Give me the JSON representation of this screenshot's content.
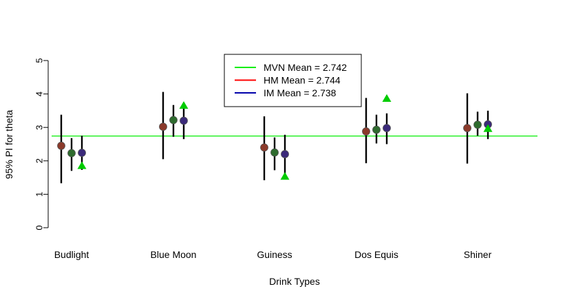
{
  "chart_data": {
    "type": "scatter",
    "title": "",
    "xlabel": "Drink Types",
    "ylabel": "95% PI for theta",
    "categories": [
      "Budlight",
      "Blue Moon",
      "Guiness",
      "Dos Equis",
      "Shiner"
    ],
    "ylim": [
      0,
      5
    ],
    "yticks": [
      0,
      1,
      2,
      3,
      4,
      5
    ],
    "grid": false,
    "legend_position": "top-center",
    "reference_line": {
      "y": 2.742,
      "color": "#00ee00"
    },
    "legend": [
      {
        "label": "MVN Mean = 2.742",
        "color": "#00ee00"
      },
      {
        "label": "HM Mean = 2.744",
        "color": "#ff0000"
      },
      {
        "label": "IM Mean = 2.738",
        "color": "#0000aa"
      }
    ],
    "series": [
      {
        "color": "#8b3a2b",
        "marker": "circle",
        "points": [
          2.45,
          3.02,
          2.4,
          2.88,
          2.98
        ],
        "lower": [
          1.33,
          2.05,
          1.42,
          1.93,
          1.92
        ],
        "upper": [
          3.38,
          4.06,
          3.33,
          3.88,
          4.02
        ]
      },
      {
        "color": "#2e6b2e",
        "marker": "circle",
        "points": [
          2.23,
          3.22,
          2.25,
          2.93,
          3.08
        ],
        "lower": [
          1.7,
          2.72,
          1.72,
          2.52,
          2.75
        ],
        "upper": [
          2.68,
          3.67,
          2.7,
          3.38,
          3.47
        ]
      },
      {
        "color": "#3b2a7a",
        "marker": "circle",
        "points": [
          2.24,
          3.2,
          2.2,
          2.98,
          3.09
        ],
        "lower": [
          1.73,
          2.65,
          1.6,
          2.5,
          2.65
        ],
        "upper": [
          2.75,
          3.74,
          2.78,
          3.42,
          3.5
        ]
      },
      {
        "color": "#00cc00",
        "marker": "triangle",
        "points": [
          1.85,
          3.65,
          1.53,
          3.86,
          2.96
        ]
      }
    ]
  }
}
